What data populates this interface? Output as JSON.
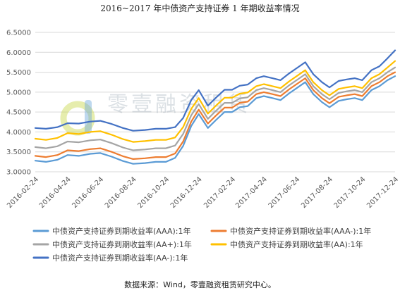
{
  "chart_data": {
    "type": "line",
    "title": "2016~2017 年中债资产支持证券 1 年期收益率情况",
    "xlabel": "",
    "ylabel": "",
    "ylim": [
      3.0,
      6.5
    ],
    "yticks": [
      "3.0000",
      "3.5000",
      "4.0000",
      "4.5000",
      "5.0000",
      "5.5000",
      "6.0000",
      "6.5000"
    ],
    "xrange": [
      "2016-02-24",
      "2017-12-24"
    ],
    "xticks": [
      "2016-02-24",
      "2016-04-24",
      "2016-06-24",
      "2016-08-24",
      "2016-10-24",
      "2016-12-24",
      "2017-02-24",
      "2017-04-24",
      "2017-06-24",
      "2017-08-24",
      "2017-10-24",
      "2017-12-24"
    ],
    "grid": "horizontal",
    "legend_position": "bottom",
    "series": [
      {
        "name": "中债资产支持证券到期收益率(AAA):1年",
        "color": "#5b9bd5",
        "x": [
          "2016-02-24",
          "2016-03-15",
          "2016-04-05",
          "2016-04-24",
          "2016-05-15",
          "2016-06-05",
          "2016-06-24",
          "2016-07-15",
          "2016-08-05",
          "2016-08-24",
          "2016-09-15",
          "2016-10-05",
          "2016-10-24",
          "2016-11-10",
          "2016-11-25",
          "2016-12-10",
          "2016-12-24",
          "2017-01-10",
          "2017-01-25",
          "2017-02-10",
          "2017-02-24",
          "2017-03-10",
          "2017-03-25",
          "2017-04-10",
          "2017-04-24",
          "2017-05-10",
          "2017-05-25",
          "2017-06-10",
          "2017-06-24",
          "2017-07-10",
          "2017-07-25",
          "2017-08-10",
          "2017-08-24",
          "2017-09-10",
          "2017-09-25",
          "2017-10-10",
          "2017-10-24",
          "2017-11-10",
          "2017-11-25",
          "2017-12-10",
          "2017-12-24"
        ],
        "y": [
          3.28,
          3.25,
          3.3,
          3.42,
          3.4,
          3.45,
          3.47,
          3.38,
          3.27,
          3.2,
          3.22,
          3.25,
          3.25,
          3.35,
          3.65,
          4.15,
          4.45,
          4.1,
          4.3,
          4.5,
          4.5,
          4.62,
          4.65,
          4.85,
          4.9,
          4.85,
          4.8,
          4.97,
          5.1,
          5.25,
          4.95,
          4.75,
          4.62,
          4.78,
          4.82,
          4.85,
          4.8,
          5.05,
          5.15,
          5.3,
          5.4
        ]
      },
      {
        "name": "中债资产支持证券到期收益率(AAA-):1年",
        "color": "#ed7d31",
        "x": [
          "2016-02-24",
          "2016-03-15",
          "2016-04-05",
          "2016-04-24",
          "2016-05-15",
          "2016-06-05",
          "2016-06-24",
          "2016-07-15",
          "2016-08-05",
          "2016-08-24",
          "2016-09-15",
          "2016-10-05",
          "2016-10-24",
          "2016-11-10",
          "2016-11-25",
          "2016-12-10",
          "2016-12-24",
          "2017-01-10",
          "2017-01-25",
          "2017-02-10",
          "2017-02-24",
          "2017-03-10",
          "2017-03-25",
          "2017-04-10",
          "2017-04-24",
          "2017-05-10",
          "2017-05-25",
          "2017-06-10",
          "2017-06-24",
          "2017-07-10",
          "2017-07-25",
          "2017-08-10",
          "2017-08-24",
          "2017-09-10",
          "2017-09-25",
          "2017-10-10",
          "2017-10-24",
          "2017-11-10",
          "2017-11-25",
          "2017-12-10",
          "2017-12-24"
        ],
        "y": [
          3.4,
          3.37,
          3.42,
          3.54,
          3.52,
          3.57,
          3.59,
          3.5,
          3.39,
          3.32,
          3.34,
          3.37,
          3.37,
          3.46,
          3.76,
          4.26,
          4.56,
          4.21,
          4.41,
          4.61,
          4.61,
          4.73,
          4.76,
          4.95,
          5.0,
          4.95,
          4.9,
          5.07,
          5.2,
          5.35,
          5.05,
          4.85,
          4.72,
          4.88,
          4.92,
          4.95,
          4.9,
          5.15,
          5.25,
          5.4,
          5.5
        ]
      },
      {
        "name": "中债资产支持证券到期收益率(AA+):1年",
        "color": "#a5a5a5",
        "x": [
          "2016-02-24",
          "2016-03-15",
          "2016-04-05",
          "2016-04-24",
          "2016-05-15",
          "2016-06-05",
          "2016-06-24",
          "2016-07-15",
          "2016-08-05",
          "2016-08-24",
          "2016-09-15",
          "2016-10-05",
          "2016-10-24",
          "2016-11-10",
          "2016-11-25",
          "2016-12-10",
          "2016-12-24",
          "2017-01-10",
          "2017-01-25",
          "2017-02-10",
          "2017-02-24",
          "2017-03-10",
          "2017-03-25",
          "2017-04-10",
          "2017-04-24",
          "2017-05-10",
          "2017-05-25",
          "2017-06-10",
          "2017-06-24",
          "2017-07-10",
          "2017-07-25",
          "2017-08-10",
          "2017-08-24",
          "2017-09-10",
          "2017-09-25",
          "2017-10-10",
          "2017-10-24",
          "2017-11-10",
          "2017-11-25",
          "2017-12-10",
          "2017-12-24"
        ],
        "y": [
          3.62,
          3.59,
          3.64,
          3.76,
          3.74,
          3.79,
          3.81,
          3.72,
          3.61,
          3.54,
          3.56,
          3.59,
          3.59,
          3.66,
          3.95,
          4.42,
          4.7,
          4.33,
          4.53,
          4.73,
          4.73,
          4.84,
          4.87,
          5.05,
          5.1,
          5.05,
          5.0,
          5.17,
          5.3,
          5.45,
          5.15,
          4.95,
          4.82,
          4.98,
          5.02,
          5.05,
          5.0,
          5.25,
          5.35,
          5.5,
          5.62
        ]
      },
      {
        "name": "中债资产支持证券到期收益率(AA):1年",
        "color": "#ffc000",
        "x": [
          "2016-02-24",
          "2016-03-15",
          "2016-04-05",
          "2016-04-24",
          "2016-05-15",
          "2016-06-05",
          "2016-06-24",
          "2016-07-15",
          "2016-08-05",
          "2016-08-24",
          "2016-09-15",
          "2016-10-05",
          "2016-10-24",
          "2016-11-10",
          "2016-11-25",
          "2016-12-10",
          "2016-12-24",
          "2017-01-10",
          "2017-01-25",
          "2017-02-10",
          "2017-02-24",
          "2017-03-10",
          "2017-03-25",
          "2017-04-10",
          "2017-04-24",
          "2017-05-10",
          "2017-05-25",
          "2017-06-10",
          "2017-06-24",
          "2017-07-10",
          "2017-07-25",
          "2017-08-10",
          "2017-08-24",
          "2017-09-10",
          "2017-09-25",
          "2017-10-10",
          "2017-10-24",
          "2017-11-10",
          "2017-11-25",
          "2017-12-10",
          "2017-12-24"
        ],
        "y": [
          3.83,
          3.8,
          3.85,
          3.97,
          3.95,
          4.0,
          4.02,
          3.93,
          3.82,
          3.75,
          3.77,
          3.8,
          3.8,
          3.86,
          4.12,
          4.58,
          4.85,
          4.46,
          4.66,
          4.86,
          4.86,
          4.96,
          4.99,
          5.15,
          5.2,
          5.15,
          5.1,
          5.27,
          5.4,
          5.55,
          5.25,
          5.05,
          4.92,
          5.08,
          5.12,
          5.15,
          5.1,
          5.35,
          5.45,
          5.62,
          5.78
        ]
      },
      {
        "name": "中债资产支持证券到期收益率(AA-):1年",
        "color": "#4472c4",
        "x": [
          "2016-02-24",
          "2016-03-15",
          "2016-04-05",
          "2016-04-24",
          "2016-05-15",
          "2016-06-05",
          "2016-06-24",
          "2016-07-15",
          "2016-08-05",
          "2016-08-24",
          "2016-09-15",
          "2016-10-05",
          "2016-10-24",
          "2016-11-10",
          "2016-11-25",
          "2016-12-10",
          "2016-12-24",
          "2017-01-10",
          "2017-01-25",
          "2017-02-10",
          "2017-02-24",
          "2017-03-10",
          "2017-03-25",
          "2017-04-10",
          "2017-04-24",
          "2017-05-10",
          "2017-05-25",
          "2017-06-10",
          "2017-06-24",
          "2017-07-10",
          "2017-07-25",
          "2017-08-10",
          "2017-08-24",
          "2017-09-10",
          "2017-09-25",
          "2017-10-10",
          "2017-10-24",
          "2017-11-10",
          "2017-11-25",
          "2017-12-10",
          "2017-12-24"
        ],
        "y": [
          4.1,
          4.08,
          4.12,
          4.22,
          4.21,
          4.26,
          4.28,
          4.2,
          4.1,
          4.03,
          4.05,
          4.08,
          4.08,
          4.12,
          4.35,
          4.8,
          5.05,
          4.66,
          4.86,
          5.06,
          5.06,
          5.16,
          5.19,
          5.35,
          5.4,
          5.35,
          5.3,
          5.47,
          5.6,
          5.75,
          5.45,
          5.25,
          5.12,
          5.28,
          5.32,
          5.35,
          5.3,
          5.55,
          5.65,
          5.85,
          6.05
        ]
      }
    ]
  },
  "watermark": {
    "text": "零壹融资租赁",
    "logo_icon": "lingyi-logo-icon"
  },
  "source": "数据来源：Wind，零壹融资租赁研究中心。"
}
